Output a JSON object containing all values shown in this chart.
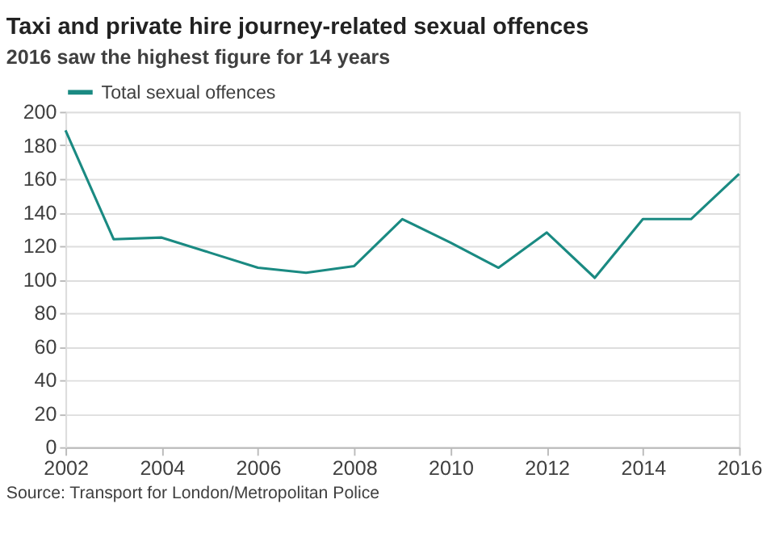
{
  "chart_data": {
    "type": "line",
    "title": "Taxi and private hire journey-related sexual offences",
    "subtitle": "2016 saw the highest figure for 14 years",
    "x": [
      2002,
      2003,
      2004,
      2005,
      2006,
      2007,
      2008,
      2009,
      2010,
      2011,
      2012,
      2013,
      2014,
      2015,
      2016
    ],
    "series": [
      {
        "name": "Total sexual offences",
        "color": "#1a8a82",
        "values": [
          189,
          124,
          125,
          116,
          107,
          104,
          108,
          136,
          122,
          107,
          128,
          101,
          136,
          136,
          163
        ]
      }
    ],
    "xlim": [
      2002,
      2016
    ],
    "xticks": [
      2002,
      2004,
      2006,
      2008,
      2010,
      2012,
      2014,
      2016
    ],
    "ylim": [
      0,
      200
    ],
    "yticks": [
      0,
      20,
      40,
      60,
      80,
      100,
      120,
      140,
      160,
      180,
      200
    ],
    "grid": "y",
    "legend": "top left",
    "marker": "none",
    "line_style": "solid",
    "annotations": [
      "Source: Transport for London/Metropolitan Police"
    ]
  }
}
